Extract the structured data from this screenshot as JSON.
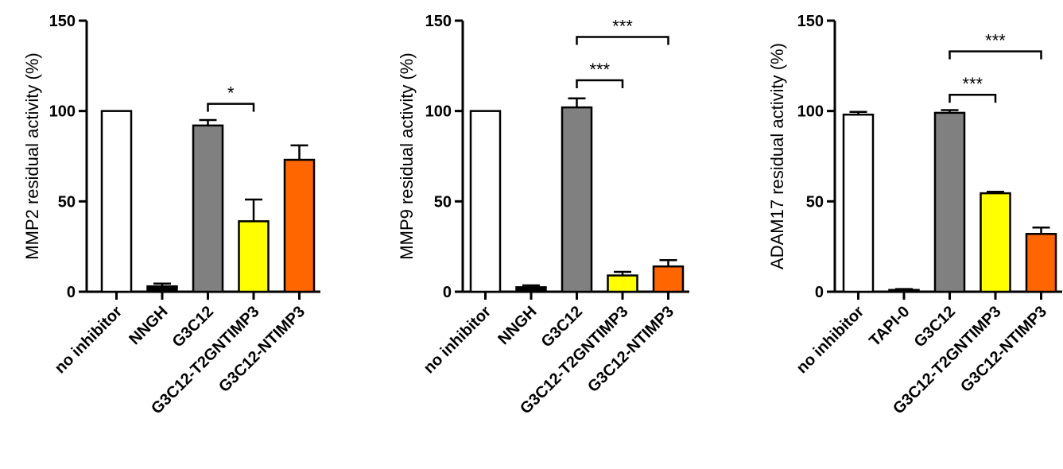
{
  "chart_data": [
    {
      "type": "bar",
      "ylabel": "MMP2 residual activity  (%)",
      "ylim": [
        0,
        150
      ],
      "yticks": [
        0,
        50,
        100,
        150
      ],
      "categories": [
        "no inhibitor",
        "NNGH",
        "G3C12",
        "G3C12-T2GNTIMP3",
        "G3C12-NTIMP3"
      ],
      "values": [
        100,
        3,
        92,
        39,
        73
      ],
      "errors": [
        0,
        1.5,
        3,
        12,
        8
      ],
      "colors": [
        "#ffffff",
        "#000000",
        "#808080",
        "#ffff00",
        "#ff6600"
      ],
      "significance": [
        {
          "from": 2,
          "to": 3,
          "label": "*",
          "y": 104
        }
      ]
    },
    {
      "type": "bar",
      "ylabel": "MMP9 residual activity  (%)",
      "ylim": [
        0,
        150
      ],
      "yticks": [
        0,
        50,
        100,
        150
      ],
      "categories": [
        "no inhibitor",
        "NNGH",
        "G3C12",
        "G3C12-T2GNTIMP3",
        "G3C12-NTIMP3"
      ],
      "values": [
        100,
        2.5,
        102,
        9,
        14
      ],
      "errors": [
        0,
        1,
        5,
        2,
        3.5
      ],
      "colors": [
        "#ffffff",
        "#000000",
        "#808080",
        "#ffff00",
        "#ff6600"
      ],
      "significance": [
        {
          "from": 2,
          "to": 3,
          "label": "***",
          "y": 117
        },
        {
          "from": 2,
          "to": 4,
          "label": "***",
          "y": 141
        }
      ]
    },
    {
      "type": "bar",
      "ylabel": "ADAM17 residual activity  (%)",
      "ylim": [
        0,
        150
      ],
      "yticks": [
        0,
        50,
        100,
        150
      ],
      "categories": [
        "no inhibitor",
        "TAPI-0",
        "G3C12",
        "G3C12-T2GNTIMP3",
        "G3C12-NTIMP3"
      ],
      "values": [
        98,
        1,
        99,
        54.5,
        32
      ],
      "errors": [
        1.5,
        0.5,
        1.5,
        0.8,
        3.5
      ],
      "colors": [
        "#ffffff",
        "#000000",
        "#808080",
        "#ffff00",
        "#ff6600"
      ],
      "significance": [
        {
          "from": 2,
          "to": 3,
          "label": "***",
          "y": 109
        },
        {
          "from": 2,
          "to": 4,
          "label": "***",
          "y": 133
        }
      ]
    }
  ]
}
